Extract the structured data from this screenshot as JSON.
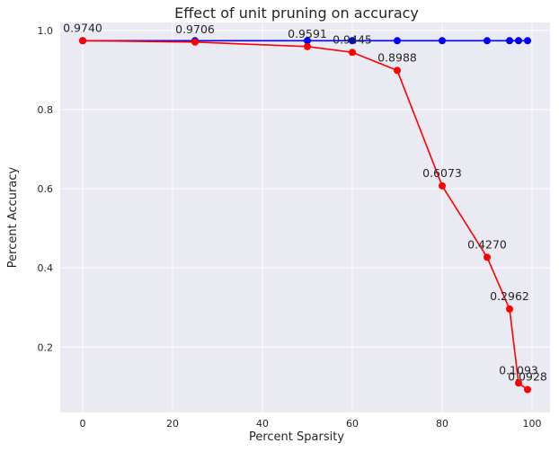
{
  "chart_data": {
    "type": "line",
    "title": "Effect of unit pruning on accuracy",
    "xlabel": "Percent Sparsity",
    "ylabel": "Percent Accuracy",
    "xlim": [
      -5,
      104
    ],
    "ylim": [
      0.035,
      1.02
    ],
    "xticks": [
      0,
      20,
      40,
      60,
      80,
      100
    ],
    "yticks": [
      0.2,
      0.4,
      0.6,
      0.8,
      1.0
    ],
    "xtick_labels": [
      "0",
      "20",
      "40",
      "60",
      "80",
      "100"
    ],
    "ytick_labels": [
      "0.2",
      "0.4",
      "0.6",
      "0.8",
      "1.0"
    ],
    "grid": true,
    "x": [
      0,
      25,
      50,
      60,
      70,
      80,
      90,
      95,
      97,
      99
    ],
    "series": [
      {
        "color": "#0000ff",
        "values": [
          0.974,
          0.974,
          0.974,
          0.974,
          0.974,
          0.974,
          0.974,
          0.974,
          0.974,
          0.974
        ]
      },
      {
        "color": "#ff0000",
        "values": [
          0.974,
          0.9706,
          0.9591,
          0.9445,
          0.8988,
          0.6073,
          0.427,
          0.2962,
          0.1093,
          0.0928
        ]
      }
    ],
    "data_labels": [
      "0.9740",
      "0.9706",
      "0.9591",
      "0.9445",
      "0.8988",
      "0.6073",
      "0.4270",
      "0.2962",
      "0.1093",
      "0.0928"
    ],
    "colors": {
      "plot_background": "#eaeaf2",
      "grid": "#ffffff"
    }
  }
}
